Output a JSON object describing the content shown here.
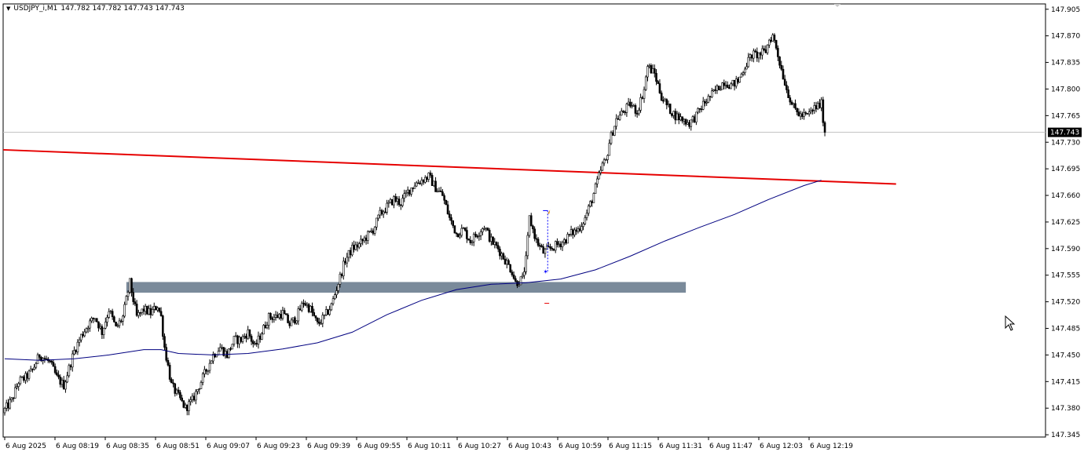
{
  "header": {
    "symbol_timeframe": "USDJPY_i,M1",
    "ohlc": "147.782 147.782 147.743 147.743",
    "menu_icon": "triangle-down-icon"
  },
  "current_price_label": "147.743",
  "colors": {
    "background": "#ffffff",
    "bull_candle": "#ffffff",
    "bear_candle": "#000000",
    "candle_outline": "#000000",
    "trendline": "#e60000",
    "moving_average": "#000080",
    "zone": "#7a8a9a",
    "bid_line": "#c0c0c0",
    "price_label_bg": "#000000",
    "price_label_text": "#ffffff"
  },
  "chart_data": {
    "type": "candlestick",
    "symbol": "USDJPY_i",
    "timeframe": "M1",
    "y_ticks": [
      "147.905",
      "147.870",
      "147.835",
      "147.800",
      "147.765",
      "147.730",
      "147.695",
      "147.660",
      "147.625",
      "147.590",
      "147.555",
      "147.520",
      "147.485",
      "147.450",
      "147.415",
      "147.380",
      "147.345"
    ],
    "ylim": [
      147.342,
      147.912
    ],
    "x_ticks": [
      "6 Aug 2025",
      "6 Aug 08:19",
      "6 Aug 08:35",
      "6 Aug 08:51",
      "6 Aug 09:07",
      "6 Aug 09:23",
      "6 Aug 09:39",
      "6 Aug 09:55",
      "6 Aug 10:11",
      "6 Aug 10:27",
      "6 Aug 10:43",
      "6 Aug 10:59",
      "6 Aug 11:15",
      "6 Aug 11:31",
      "6 Aug 11:47",
      "6 Aug 12:03",
      "6 Aug 12:19"
    ],
    "bar_count": 263,
    "grid": false,
    "close_path": [
      [
        0,
        147.378
      ],
      [
        4,
        147.39
      ],
      [
        8,
        147.415
      ],
      [
        12,
        147.42
      ],
      [
        16,
        147.43
      ],
      [
        20,
        147.45
      ],
      [
        26,
        147.44
      ],
      [
        30,
        147.42
      ],
      [
        34,
        147.41
      ],
      [
        40,
        147.455
      ],
      [
        44,
        147.475
      ],
      [
        48,
        147.49
      ],
      [
        52,
        147.5
      ],
      [
        56,
        147.48
      ],
      [
        60,
        147.51
      ],
      [
        64,
        147.485
      ],
      [
        68,
        147.5
      ],
      [
        72,
        147.545
      ],
      [
        76,
        147.5
      ],
      [
        80,
        147.51
      ],
      [
        84,
        147.505
      ],
      [
        88,
        147.515
      ],
      [
        90,
        147.5
      ],
      [
        92,
        147.46
      ],
      [
        96,
        147.41
      ],
      [
        100,
        147.395
      ],
      [
        104,
        147.38
      ],
      [
        108,
        147.39
      ],
      [
        112,
        147.41
      ],
      [
        116,
        147.43
      ],
      [
        120,
        147.45
      ],
      [
        124,
        147.46
      ],
      [
        128,
        147.45
      ],
      [
        132,
        147.47
      ],
      [
        136,
        147.47
      ],
      [
        140,
        147.48
      ],
      [
        144,
        147.46
      ],
      [
        148,
        147.48
      ],
      [
        152,
        147.5
      ],
      [
        156,
        147.5
      ],
      [
        160,
        147.505
      ],
      [
        164,
        147.49
      ],
      [
        168,
        147.5
      ],
      [
        172,
        147.52
      ],
      [
        176,
        147.51
      ],
      [
        180,
        147.49
      ],
      [
        184,
        147.5
      ],
      [
        188,
        147.515
      ],
      [
        192,
        147.545
      ],
      [
        196,
        147.575
      ],
      [
        200,
        147.59
      ],
      [
        204,
        147.595
      ],
      [
        208,
        147.605
      ],
      [
        212,
        147.615
      ],
      [
        216,
        147.635
      ],
      [
        220,
        147.645
      ],
      [
        224,
        147.655
      ],
      [
        228,
        147.65
      ],
      [
        232,
        147.665
      ],
      [
        236,
        147.675
      ],
      [
        240,
        147.68
      ],
      [
        244,
        147.685
      ],
      [
        248,
        147.67
      ],
      [
        252,
        147.66
      ],
      [
        256,
        147.63
      ],
      [
        260,
        147.61
      ],
      [
        264,
        147.615
      ],
      [
        268,
        147.6
      ],
      [
        272,
        147.61
      ],
      [
        276,
        147.62
      ],
      [
        280,
        147.6
      ],
      [
        284,
        147.59
      ],
      [
        288,
        147.575
      ],
      [
        292,
        147.56
      ],
      [
        294,
        147.545
      ],
      [
        298,
        147.55
      ],
      [
        300,
        147.575
      ],
      [
        302,
        147.63
      ],
      [
        306,
        147.6
      ],
      [
        310,
        147.585
      ],
      [
        314,
        147.59
      ],
      [
        318,
        147.595
      ],
      [
        322,
        147.6
      ],
      [
        326,
        147.61
      ],
      [
        330,
        147.615
      ],
      [
        334,
        147.63
      ],
      [
        338,
        147.655
      ],
      [
        342,
        147.685
      ],
      [
        344,
        147.7
      ],
      [
        346,
        147.705
      ],
      [
        348,
        147.73
      ],
      [
        352,
        147.76
      ],
      [
        356,
        147.77
      ],
      [
        360,
        147.78
      ],
      [
        364,
        147.77
      ],
      [
        368,
        147.8
      ],
      [
        370,
        147.83
      ],
      [
        374,
        147.82
      ],
      [
        378,
        147.79
      ],
      [
        382,
        147.775
      ],
      [
        386,
        147.765
      ],
      [
        390,
        147.76
      ],
      [
        394,
        147.755
      ],
      [
        398,
        147.765
      ],
      [
        402,
        147.78
      ],
      [
        406,
        147.79
      ],
      [
        410,
        147.8
      ],
      [
        414,
        147.81
      ],
      [
        418,
        147.805
      ],
      [
        422,
        147.81
      ],
      [
        426,
        147.83
      ],
      [
        430,
        147.845
      ],
      [
        434,
        147.845
      ],
      [
        438,
        147.85
      ],
      [
        440,
        147.865
      ],
      [
        442,
        147.87
      ],
      [
        444,
        147.855
      ],
      [
        446,
        147.835
      ],
      [
        450,
        147.8
      ],
      [
        454,
        147.775
      ],
      [
        458,
        147.765
      ],
      [
        462,
        147.765
      ],
      [
        466,
        147.775
      ],
      [
        470,
        147.78
      ],
      [
        472,
        147.743
      ]
    ],
    "moving_average": [
      [
        0,
        147.445
      ],
      [
        20,
        147.443
      ],
      [
        40,
        147.445
      ],
      [
        60,
        147.45
      ],
      [
        80,
        147.457
      ],
      [
        90,
        147.457
      ],
      [
        100,
        147.452
      ],
      [
        120,
        147.45
      ],
      [
        140,
        147.452
      ],
      [
        160,
        147.458
      ],
      [
        180,
        147.466
      ],
      [
        200,
        147.48
      ],
      [
        220,
        147.503
      ],
      [
        240,
        147.522
      ],
      [
        260,
        147.536
      ],
      [
        280,
        147.543
      ],
      [
        300,
        147.545
      ],
      [
        320,
        147.55
      ],
      [
        340,
        147.562
      ],
      [
        360,
        147.58
      ],
      [
        380,
        147.6
      ],
      [
        400,
        147.618
      ],
      [
        420,
        147.635
      ],
      [
        440,
        147.655
      ],
      [
        460,
        147.673
      ],
      [
        470,
        147.68
      ]
    ],
    "trendline": {
      "start": [
        0,
        147.72
      ],
      "end": [
        513,
        147.675
      ]
    },
    "zone": {
      "x0": 70,
      "x1": 392,
      "y_top": 147.546,
      "y_bottom": 147.532
    },
    "bid_price": 147.743,
    "annotations": {
      "dotted_marker": {
        "x": 312.5,
        "y_top": 147.64,
        "y_bottom": 147.56
      },
      "small_dash": {
        "x": 312,
        "y": 147.518
      }
    }
  }
}
